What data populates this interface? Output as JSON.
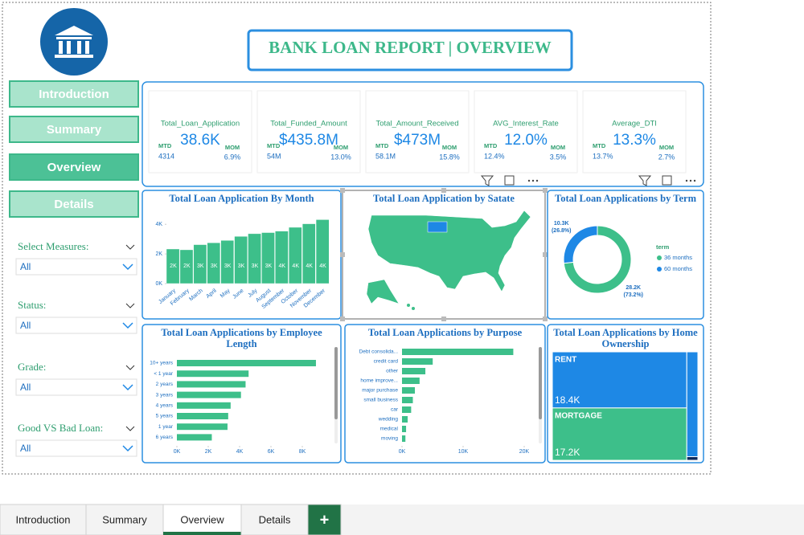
{
  "header": {
    "title": "BANK LOAN REPORT | OVERVIEW"
  },
  "nav": [
    "Introduction",
    "Summary",
    "Overview",
    "Details"
  ],
  "kpis": [
    {
      "title": "Total_Loan_Application",
      "value": "38.6K",
      "mtd_label": "MTD",
      "mtd": "4314",
      "mom_label": "MOM",
      "mom": "6.9%"
    },
    {
      "title": "Total_Funded_Amount",
      "value": "$435.8M",
      "mtd_label": "MTD",
      "mtd": "54M",
      "mom_label": "MOM",
      "mom": "13.0%"
    },
    {
      "title": "Total_Amount_Received",
      "value": "$473M",
      "mtd_label": "MTD",
      "mtd": "58.1M",
      "mom_label": "MOM",
      "mom": "15.8%"
    },
    {
      "title": "AVG_Interest_Rate",
      "value": "12.0%",
      "mtd_label": "MTD",
      "mtd": "12.4%",
      "mom_label": "MOM",
      "mom": "3.5%"
    },
    {
      "title": "Average_DTI",
      "value": "13.3%",
      "mtd_label": "MTD",
      "mtd": "13.7%",
      "mom_label": "MOM",
      "mom": "2.7%"
    }
  ],
  "filters": [
    {
      "label": "Select Measures:",
      "value": "All"
    },
    {
      "label": "Status:",
      "value": "All"
    },
    {
      "label": "Grade:",
      "value": "All"
    },
    {
      "label": "Good VS Bad Loan:",
      "value": "All"
    }
  ],
  "tabs": [
    "Introduction",
    "Summary",
    "Overview",
    "Details",
    "+"
  ],
  "chart_data": [
    {
      "type": "bar",
      "title": "Total Loan Application By Month",
      "categories": [
        "January",
        "February",
        "March",
        "April",
        "May",
        "June",
        "July",
        "August",
        "September",
        "October",
        "November",
        "December"
      ],
      "values": [
        2332,
        2279,
        2627,
        2755,
        2911,
        3184,
        3366,
        3441,
        3536,
        3796,
        4035,
        4314
      ],
      "value_labels": [
        "2K",
        "2K",
        "3K",
        "3K",
        "3K",
        "3K",
        "3K",
        "3K",
        "4K",
        "4K",
        "4K",
        "4K"
      ],
      "color": "#3dbf8a",
      "ylim": [
        0,
        4500
      ],
      "yticks": [
        {
          "value": 0,
          "label": "0K"
        },
        {
          "value": 2000,
          "label": "2K"
        },
        {
          "value": 4000,
          "label": "4K"
        }
      ]
    },
    {
      "type": "map",
      "title": "Total Loan Application by Satate",
      "color": "#3dbf8a",
      "highlight_color": "#1e88e5"
    },
    {
      "type": "donut",
      "title": "Total Loan Applications by Term",
      "legend_title": "term",
      "categories": [
        "36 months",
        "60 months"
      ],
      "values": [
        28237,
        10339
      ],
      "value_labels": [
        "28.2K",
        "10.3K"
      ],
      "percent_labels": [
        "(73.2%)",
        "(26.8%)"
      ],
      "colors": [
        "#3dbf8a",
        "#1e88e5"
      ]
    },
    {
      "type": "hbar",
      "title": "Total Loan Applications by Employee Length",
      "categories": [
        "10+ years",
        "< 1 year",
        "2 years",
        "3 years",
        "4 years",
        "5 years",
        "1 year",
        "6 years"
      ],
      "values": [
        8870,
        4575,
        4382,
        4088,
        3428,
        3273,
        3229,
        2228
      ],
      "color": "#3dbf8a",
      "xlim": [
        0,
        9000
      ],
      "xticks": [
        {
          "value": 0,
          "label": "0K"
        },
        {
          "value": 2000,
          "label": "2K"
        },
        {
          "value": 4000,
          "label": "4K"
        },
        {
          "value": 6000,
          "label": "6K"
        },
        {
          "value": 8000,
          "label": "8K"
        }
      ]
    },
    {
      "type": "hbar",
      "title": "Total Loan Applications by Purpose",
      "categories": [
        "Debt consolida...",
        "credit card",
        "other",
        "home improve...",
        "major purchase",
        "small business",
        "car",
        "wedding",
        "medical",
        "moving"
      ],
      "values": [
        18214,
        5027,
        3824,
        2876,
        2110,
        1776,
        1497,
        928,
        667,
        559
      ],
      "color": "#3dbf8a",
      "xlim": [
        0,
        20000
      ],
      "xticks": [
        {
          "value": 0,
          "label": "0K"
        },
        {
          "value": 10000,
          "label": "10K"
        },
        {
          "value": 20000,
          "label": "20K"
        }
      ]
    },
    {
      "type": "treemap",
      "title": "Total Loan Applications by Home Ownership",
      "categories": [
        "RENT",
        "MORTGAGE",
        null,
        null
      ],
      "values": [
        18439,
        17198,
        2838,
        98
      ],
      "value_labels": [
        "18.4K",
        "17.2K",
        null,
        null
      ],
      "colors": [
        "#1e88e5",
        "#3dbf8a",
        "#1e88e5",
        "#0d2a5c"
      ]
    }
  ]
}
